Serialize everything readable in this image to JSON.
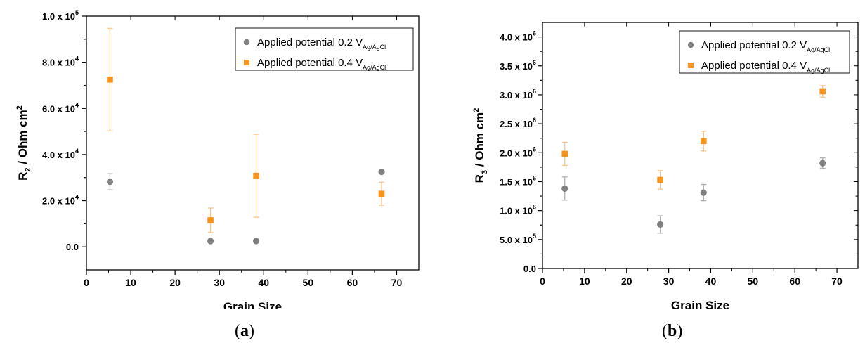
{
  "chart_data": [
    {
      "type": "scatter",
      "panel_label": "a",
      "xlabel": "Grain Size",
      "ylabel": "R2 / Ohm cm2",
      "xlim": [
        0,
        75
      ],
      "ylim": [
        -10000,
        100000
      ],
      "xticks": [
        "0",
        "10",
        "20",
        "30",
        "40",
        "50",
        "60",
        "70"
      ],
      "yticks": [
        {
          "value": 0,
          "mantissa": "0.0",
          "exp": ""
        },
        {
          "value": 20000,
          "mantissa": "2.0 x 10",
          "exp": "4"
        },
        {
          "value": 40000,
          "mantissa": "4.0 x 10",
          "exp": "4"
        },
        {
          "value": 60000,
          "mantissa": "6.0 x 10",
          "exp": "4"
        },
        {
          "value": 80000,
          "mantissa": "8.0 x 10",
          "exp": "4"
        },
        {
          "value": 100000,
          "mantissa": "1.0 x 10",
          "exp": "5"
        }
      ],
      "legend_position": "top-right",
      "series": [
        {
          "name": "Applied potential 0.2 V",
          "subscript": "Ag/AgCl",
          "marker": "circle",
          "color": "#808080",
          "x": [
            5.3,
            28,
            38.3,
            66.6
          ],
          "y": [
            28200,
            2500,
            2500,
            32500
          ],
          "yerr": [
            3500,
            0,
            0,
            0
          ]
        },
        {
          "name": "Applied potential 0.4 V",
          "subscript": "Ag/AgCl",
          "marker": "square",
          "color": "#f7941d",
          "x": [
            5.3,
            28,
            38.3,
            66.6
          ],
          "y": [
            72500,
            11500,
            30800,
            23000
          ],
          "yerr": [
            22200,
            5300,
            18000,
            5000
          ]
        }
      ]
    },
    {
      "type": "scatter",
      "panel_label": "b",
      "xlabel": "Grain Size",
      "ylabel": "R3 / Ohm cm2",
      "xlim": [
        0,
        75
      ],
      "ylim": [
        0,
        4250000
      ],
      "xticks": [
        "0",
        "10",
        "20",
        "30",
        "40",
        "50",
        "60",
        "70"
      ],
      "yticks": [
        {
          "value": 0,
          "mantissa": "0.0",
          "exp": ""
        },
        {
          "value": 500000,
          "mantissa": "5.0 x 10",
          "exp": "5"
        },
        {
          "value": 1000000,
          "mantissa": "1.0 x 10",
          "exp": "6"
        },
        {
          "value": 1500000,
          "mantissa": "1.5 x 10",
          "exp": "6"
        },
        {
          "value": 2000000,
          "mantissa": "2.0 x 10",
          "exp": "6"
        },
        {
          "value": 2500000,
          "mantissa": "2.5 x 10",
          "exp": "6"
        },
        {
          "value": 3000000,
          "mantissa": "3.0 x 10",
          "exp": "6"
        },
        {
          "value": 3500000,
          "mantissa": "3.5 x 10",
          "exp": "6"
        },
        {
          "value": 4000000,
          "mantissa": "4.0 x 10",
          "exp": "6"
        }
      ],
      "legend_position": "top-right",
      "series": [
        {
          "name": "Applied potential 0.2 V",
          "subscript": "Ag/AgCl",
          "marker": "circle",
          "color": "#808080",
          "x": [
            5.3,
            28,
            38.3,
            66.6
          ],
          "y": [
            1380000,
            760000,
            1310000,
            1820000
          ],
          "yerr": [
            200000,
            150000,
            140000,
            90000
          ]
        },
        {
          "name": "Applied potential 0.4 V",
          "subscript": "Ag/AgCl",
          "marker": "square",
          "color": "#f7941d",
          "x": [
            5.3,
            28,
            38.3,
            66.6
          ],
          "y": [
            1980000,
            1530000,
            2200000,
            3060000
          ],
          "yerr": [
            200000,
            160000,
            170000,
            100000
          ]
        }
      ]
    }
  ]
}
